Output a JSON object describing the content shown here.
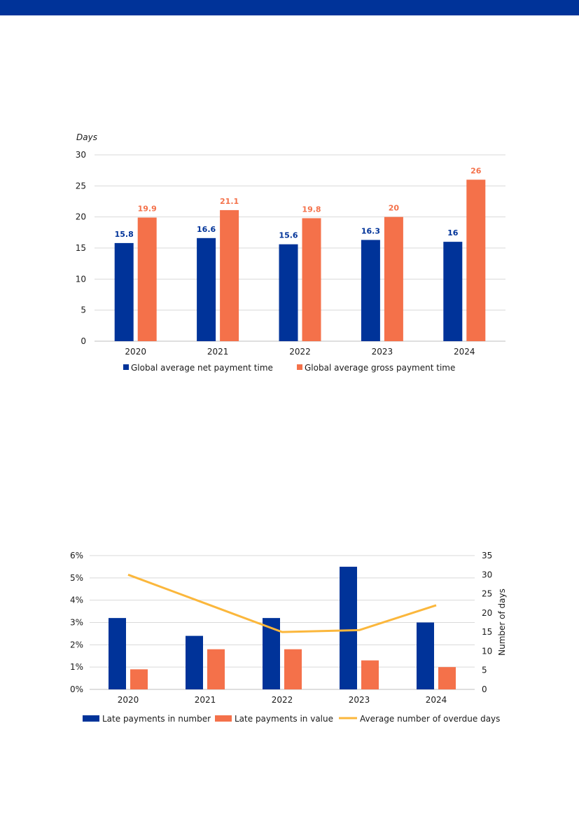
{
  "colors": {
    "brand": "#003399",
    "navy": "#003399",
    "orange": "#F4714A",
    "yellow": "#FBB73C",
    "grid": "#d9d9d9"
  },
  "chart_data": [
    {
      "type": "bar",
      "ylabel": "Days",
      "ylim": [
        0,
        30
      ],
      "yticks": [
        0,
        5,
        10,
        15,
        20,
        25,
        30
      ],
      "categories": [
        "2020",
        "2021",
        "2022",
        "2023",
        "2024"
      ],
      "series": [
        {
          "name": "Global average net payment time",
          "values": [
            15.8,
            16.6,
            15.6,
            16.3,
            16
          ],
          "labels": [
            "15.8",
            "16.6",
            "15.6",
            "16.3",
            "16"
          ],
          "color": "#003399"
        },
        {
          "name": "Global average gross payment time",
          "values": [
            19.9,
            21.1,
            19.8,
            20,
            26
          ],
          "labels": [
            "19.9",
            "21.1",
            "19.8",
            "20",
            "26"
          ],
          "color": "#F4714A"
        }
      ],
      "grid": true,
      "legend": "bottom"
    },
    {
      "type": "bar",
      "categories": [
        "2020",
        "2021",
        "2022",
        "2023",
        "2024"
      ],
      "ylim": [
        0,
        6
      ],
      "yticks": [
        "0%",
        "1%",
        "2%",
        "3%",
        "4%",
        "5%",
        "6%"
      ],
      "y2label": "Number of days",
      "y2lim": [
        0,
        35
      ],
      "y2ticks": [
        "0",
        "5",
        "10",
        "15",
        "20",
        "25",
        "30",
        "35"
      ],
      "series": [
        {
          "name": "Late payments in number",
          "type": "bar",
          "axis": "left",
          "values": [
            3.2,
            2.4,
            3.2,
            5.5,
            3.0
          ],
          "color": "#003399"
        },
        {
          "name": "Late payments in value",
          "type": "bar",
          "axis": "left",
          "values": [
            0.9,
            1.8,
            1.8,
            1.3,
            1.0
          ],
          "color": "#F4714A"
        },
        {
          "name": "Average number of overdue days",
          "type": "line",
          "axis": "right",
          "values": [
            30,
            22.5,
            15,
            15.5,
            22
          ],
          "color": "#FBB73C"
        }
      ],
      "grid": true,
      "legend": "bottom"
    }
  ]
}
